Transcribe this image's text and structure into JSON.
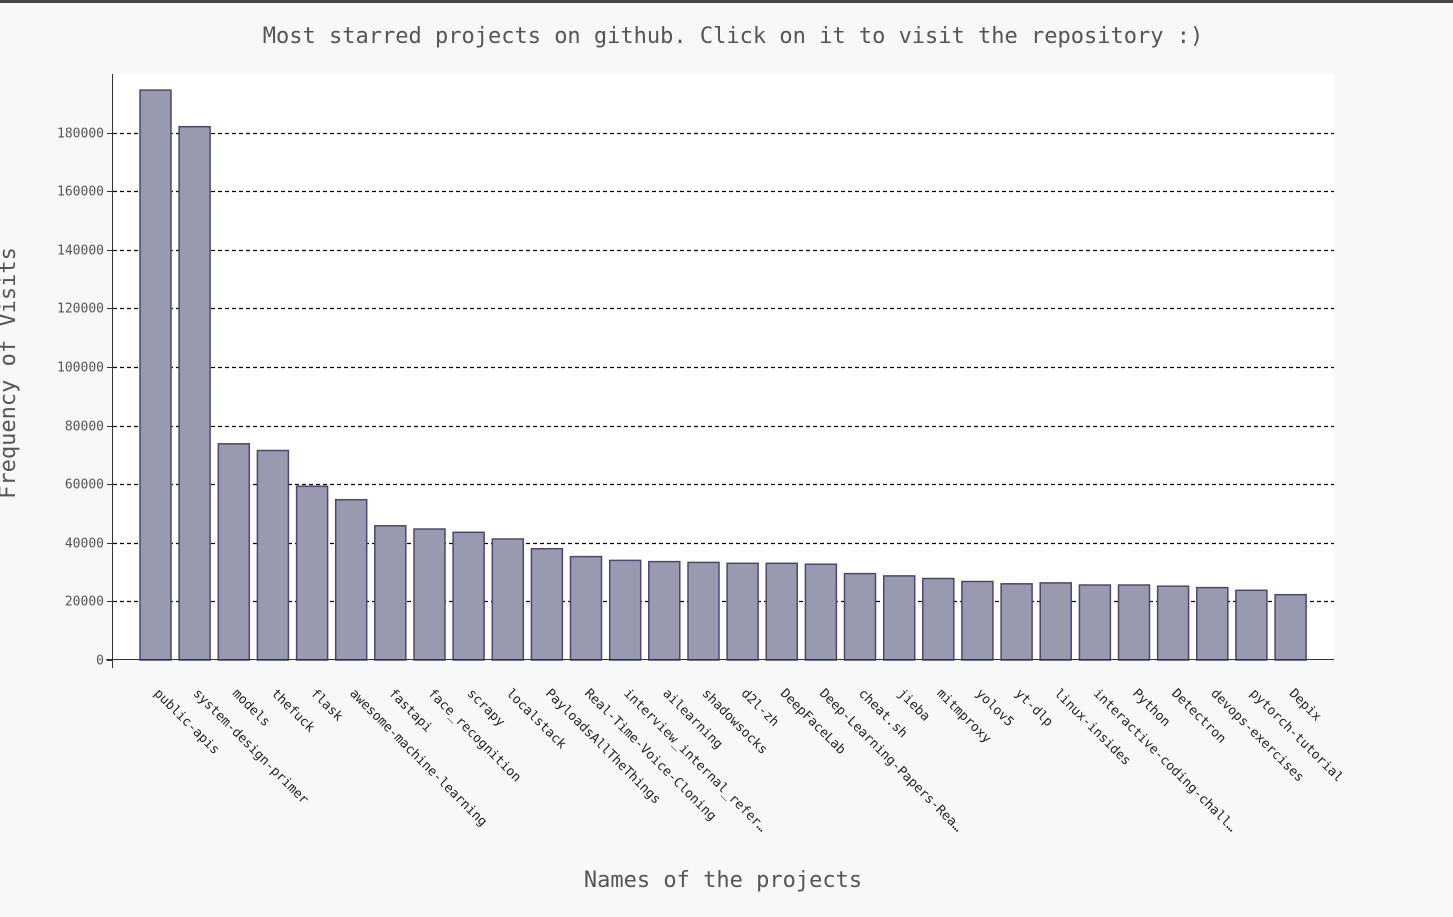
{
  "colors": {
    "background": "#f8f8f8",
    "plot_background": "#ffffff",
    "bar_fill": "#9999b0",
    "bar_stroke": "#4a4870",
    "grid": "#000000",
    "text": "#555555",
    "axis": "#333333"
  },
  "chart_data": {
    "type": "bar",
    "title": "Most starred projects on github. Click on it to visit the repository :)",
    "xlabel": "Names of the projects",
    "ylabel": "Frequency of Visits",
    "ylim": [
      0,
      200000
    ],
    "yticks": [
      0,
      20000,
      40000,
      60000,
      80000,
      100000,
      120000,
      140000,
      160000,
      180000
    ],
    "ytick_labels": [
      "0",
      "20000",
      "40000",
      "60000",
      "80000",
      "100000",
      "120000",
      "140000",
      "160000",
      "180000"
    ],
    "grid": "horizontal dashed",
    "categories": [
      "public-apis",
      "system-design-primer",
      "models",
      "thefuck",
      "flask",
      "awesome-machine-learning",
      "fastapi",
      "face_recognition",
      "scrapy",
      "localstack",
      "PayloadsAllTheThings",
      "Real-Time-Voice-Cloning",
      "interview_internal_refer…",
      "ailearning",
      "shadowsocks",
      "d2l-zh",
      "DeepFaceLab",
      "Deep-Learning-Papers-Rea…",
      "cheat.sh",
      "jieba",
      "mitmproxy",
      "yolov5",
      "yt-dlp",
      "linux-insides",
      "interactive-coding-chall…",
      "Python",
      "Detectron",
      "devops-exercises",
      "pytorch-tutorial",
      "Depix"
    ],
    "values": [
      194500,
      182000,
      73800,
      71500,
      59300,
      54700,
      45800,
      44700,
      43600,
      41300,
      38000,
      35300,
      34000,
      33600,
      33300,
      33000,
      33000,
      32700,
      29500,
      28700,
      27800,
      26800,
      26000,
      26300,
      25600,
      25600,
      25200,
      24700,
      23800,
      22300
    ]
  }
}
